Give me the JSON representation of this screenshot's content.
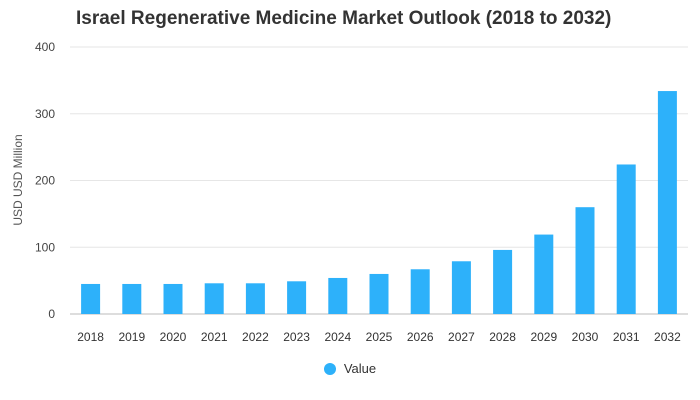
{
  "chart_data": {
    "type": "bar",
    "title": "Israel Regenerative Medicine Market Outlook (2018 to 2032)",
    "xlabel": "",
    "ylabel": "USD USD Million",
    "ylim": [
      0,
      400
    ],
    "yticks": [
      0,
      100,
      200,
      300,
      400
    ],
    "grid": true,
    "legend_position": "bottom",
    "categories": [
      "2018",
      "2019",
      "2020",
      "2021",
      "2022",
      "2023",
      "2024",
      "2025",
      "2026",
      "2027",
      "2028",
      "2029",
      "2030",
      "2031",
      "2032"
    ],
    "series": [
      {
        "name": "Value",
        "color": "#2db1fa",
        "values": [
          45,
          45,
          45,
          46,
          46,
          49,
          54,
          60,
          67,
          79,
          96,
          119,
          160,
          224,
          334
        ]
      }
    ]
  }
}
